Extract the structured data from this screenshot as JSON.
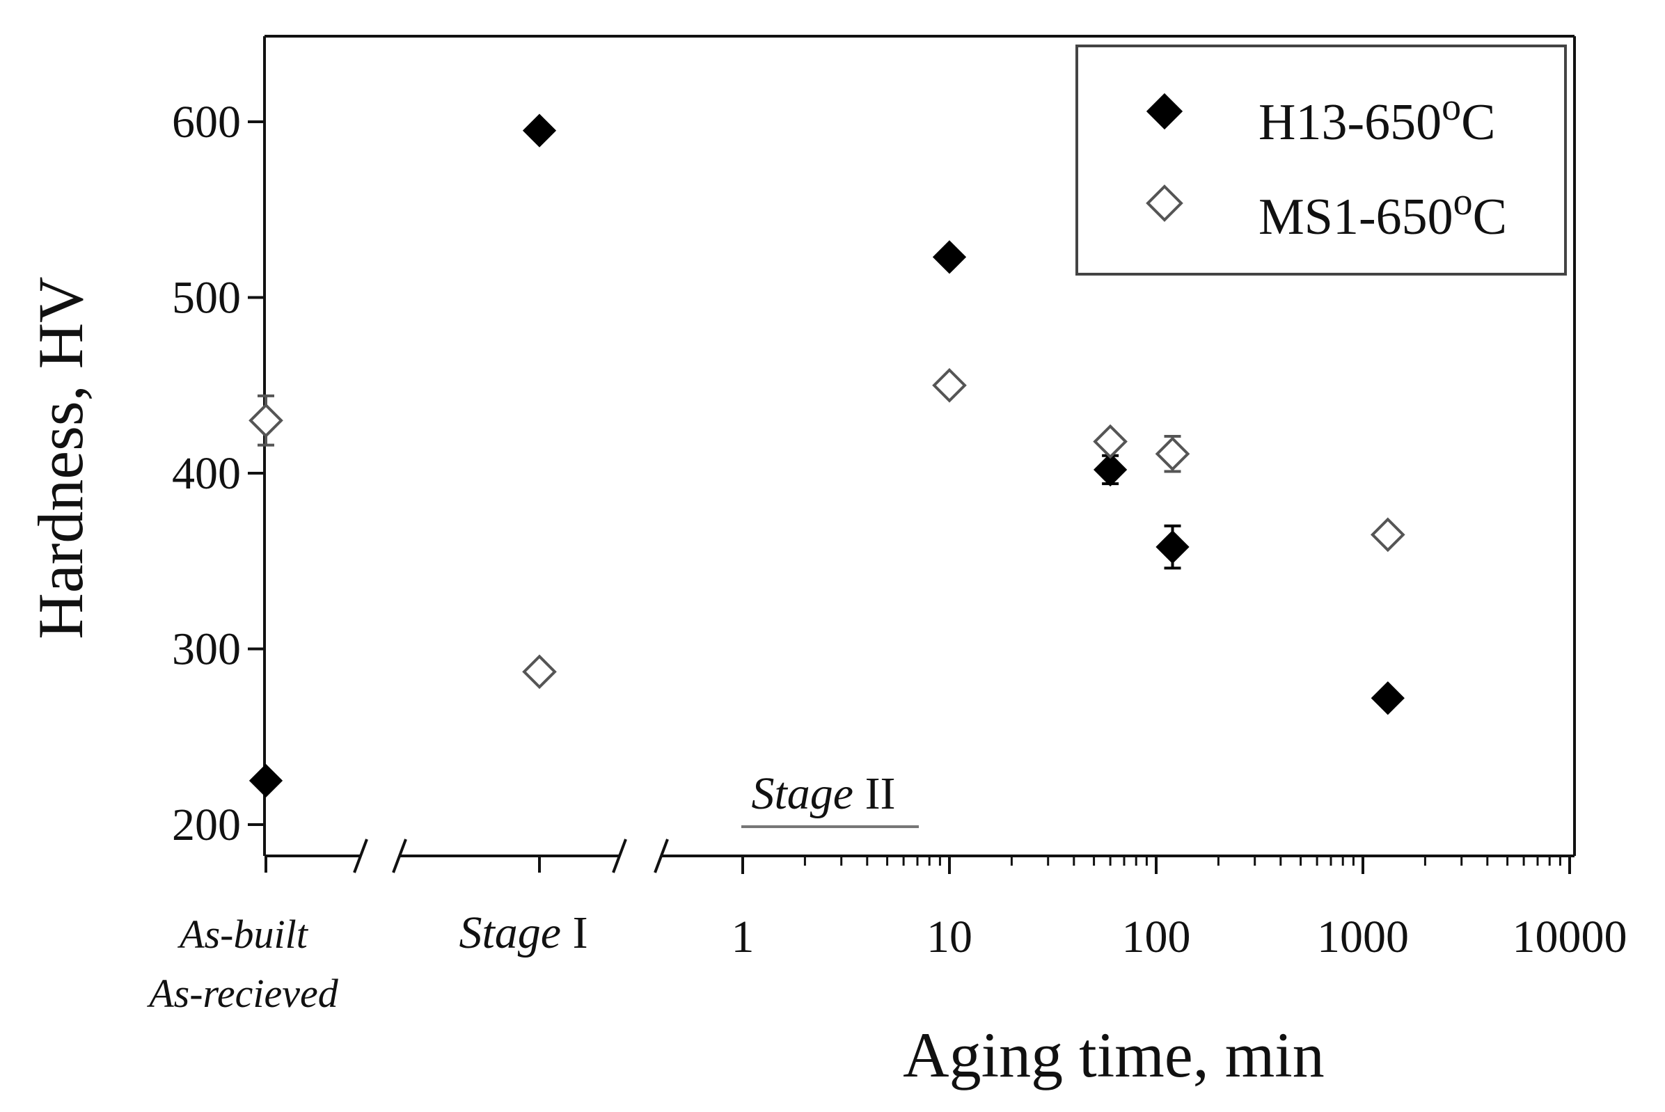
{
  "chart_data": {
    "type": "scatter",
    "title": "",
    "xlabel": "Aging time, min",
    "ylabel": "Hardness, HV",
    "xscale": "log (broken axis)",
    "xlim": [
      1,
      10000
    ],
    "ylim": [
      180,
      650
    ],
    "yticks": [
      200,
      300,
      400,
      500,
      600
    ],
    "xticks": [
      1,
      10,
      100,
      1000,
      10000
    ],
    "xtick_labels": [
      "1",
      "10",
      "100",
      "1000",
      "10000"
    ],
    "grid": false,
    "legend_position": "top-right",
    "categorical_labels": {
      "as_built": [
        "As-built",
        "As-recieved"
      ],
      "stage1_italic": "Stage",
      "stage1_roman": " I"
    },
    "annotation": {
      "italic": "Stage",
      "roman": " II"
    },
    "series": [
      {
        "name": "H13-650",
        "legend_label": "H13-650",
        "legend_sup": "o",
        "legend_tail": "C",
        "marker": "filled-diamond",
        "color": "#000000",
        "points": [
          {
            "x": "As-built",
            "y": 225
          },
          {
            "x": "Stage I",
            "y": 595
          },
          {
            "x": 10,
            "y": 523
          },
          {
            "x": 60,
            "y": 402,
            "err": 8
          },
          {
            "x": 120,
            "y": 358,
            "err": 12
          },
          {
            "x": 1320,
            "y": 272
          }
        ]
      },
      {
        "name": "MS1-650",
        "legend_label": "MS1-650",
        "legend_sup": "o",
        "legend_tail": "C",
        "marker": "open-diamond",
        "color": "#555555",
        "points": [
          {
            "x": "As-built",
            "y": 430,
            "err": 14
          },
          {
            "x": "Stage I",
            "y": 287
          },
          {
            "x": 10,
            "y": 450
          },
          {
            "x": 60,
            "y": 418
          },
          {
            "x": 120,
            "y": 411,
            "err": 10
          },
          {
            "x": 1320,
            "y": 365
          }
        ]
      }
    ]
  }
}
